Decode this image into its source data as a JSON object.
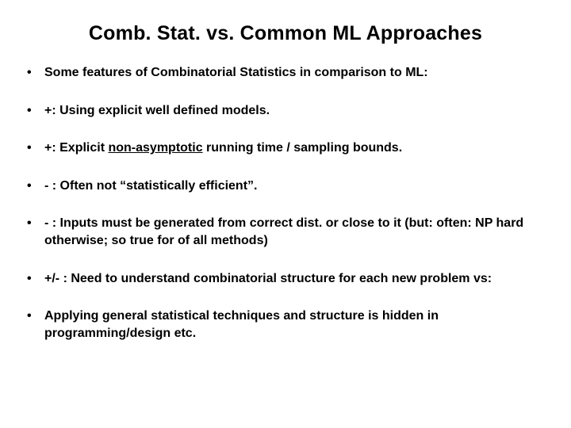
{
  "title": "Comb. Stat. vs. Common ML Approaches",
  "bullets": [
    {
      "kind": "plain",
      "text": "Some features of Combinatorial Statistics in comparison to ML:"
    },
    {
      "kind": "plain",
      "text": "+: Using explicit well defined models."
    },
    {
      "kind": "underline",
      "pre": "+:  Explicit ",
      "mid": "non-asymptotic",
      "post": " running time / sampling bounds."
    },
    {
      "kind": "plain",
      "text": "- : Often not “statistically efficient”."
    },
    {
      "kind": "plain",
      "text": "- :  Inputs must be generated from correct dist. or close to it (but: often: NP hard otherwise; so true for of all methods)"
    },
    {
      "kind": "plain",
      "text": "+/- : Need to understand combinatorial structure for each new problem vs:"
    },
    {
      "kind": "plain",
      "text": "Applying general statistical techniques and structure is hidden in programming/design etc."
    }
  ]
}
